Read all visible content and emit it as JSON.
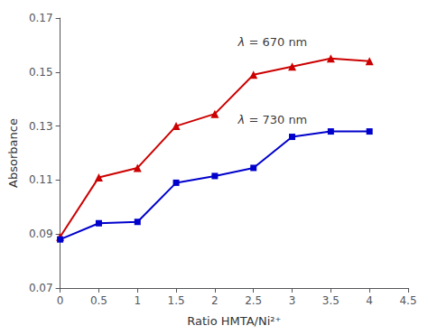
{
  "chart_data": {
    "type": "line",
    "xlabel": "Ratio HMTA/Ni²⁺",
    "ylabel": "Absorbance",
    "x": [
      0,
      0.5,
      1.0,
      1.5,
      2.0,
      2.5,
      3.0,
      3.5,
      4.0
    ],
    "series": [
      {
        "color": "#cc0000",
        "marker": "triangle",
        "values": [
          0.089,
          0.111,
          0.1145,
          0.13,
          0.1345,
          0.149,
          0.152,
          0.155,
          0.154
        ]
      },
      {
        "color": "#0000cc",
        "marker": "square",
        "values": [
          0.088,
          0.094,
          0.0945,
          0.109,
          0.1115,
          0.1145,
          0.126,
          0.128,
          0.128
        ]
      }
    ],
    "xlim": [
      0,
      4.5
    ],
    "ylim": [
      0.07,
      0.17
    ],
    "xticks": [
      0,
      0.5,
      1.0,
      1.5,
      2.0,
      2.5,
      3.0,
      3.5,
      4.0,
      4.5
    ],
    "yticks": [
      0.07,
      0.09,
      0.11,
      0.13,
      0.15,
      0.17
    ],
    "grid": false,
    "annotations": [
      {
        "text": "λ = 670 nm",
        "x": 2.3,
        "y": 0.161
      },
      {
        "text": "λ = 730 nm",
        "x": 2.3,
        "y": 0.1325
      }
    ]
  }
}
